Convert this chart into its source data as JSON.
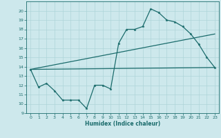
{
  "bg_color": "#cde8ec",
  "line_color": "#1a6b6b",
  "grid_color": "#aed4d8",
  "xlabel": "Humidex (Indice chaleur)",
  "ylim": [
    9,
    21
  ],
  "xlim": [
    -0.5,
    23.5
  ],
  "yticks": [
    9,
    10,
    11,
    12,
    13,
    14,
    15,
    16,
    17,
    18,
    19,
    20
  ],
  "xticks": [
    0,
    1,
    2,
    3,
    4,
    5,
    6,
    7,
    8,
    9,
    10,
    11,
    12,
    13,
    14,
    15,
    16,
    17,
    18,
    19,
    20,
    21,
    22,
    23
  ],
  "line1_x": [
    0,
    1,
    2,
    3,
    4,
    5,
    6,
    7,
    8,
    9,
    10,
    11,
    12,
    13,
    14,
    15,
    16,
    17,
    18,
    19,
    20,
    21,
    22,
    23
  ],
  "line1_y": [
    13.7,
    11.8,
    12.2,
    11.4,
    10.4,
    10.4,
    10.4,
    9.5,
    12.0,
    12.0,
    11.6,
    16.5,
    18.0,
    18.0,
    18.3,
    20.2,
    19.8,
    19.0,
    18.8,
    18.3,
    17.5,
    16.4,
    15.0,
    13.9
  ],
  "line2_x": [
    0,
    23
  ],
  "line2_y": [
    13.7,
    17.5
  ],
  "line3_x": [
    0,
    23
  ],
  "line3_y": [
    13.7,
    13.9
  ]
}
